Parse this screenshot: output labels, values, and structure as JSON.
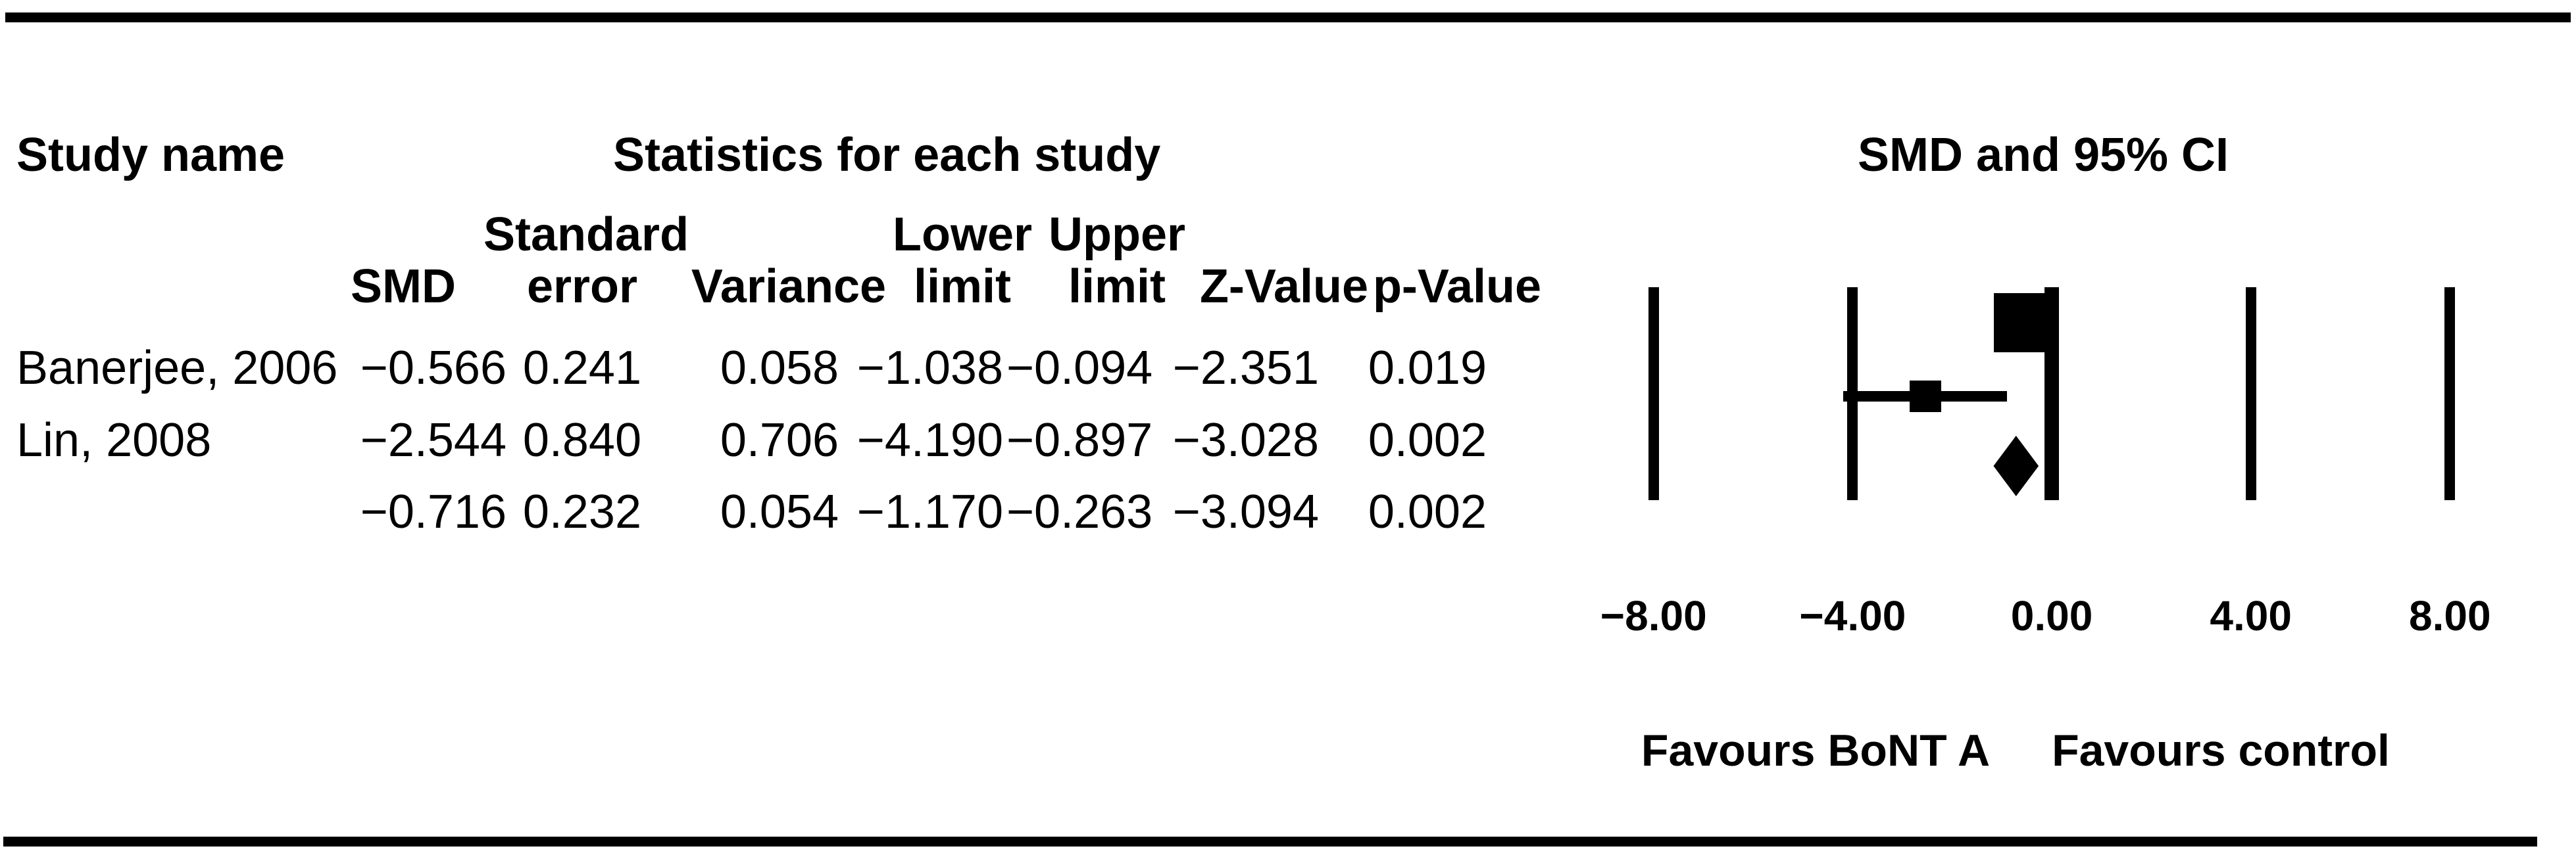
{
  "figure": {
    "headers": {
      "study_name": "Study name",
      "stats": "Statistics for each study",
      "plot": "SMD and 95% CI"
    },
    "columns": [
      {
        "line1": "",
        "line2": "SMD"
      },
      {
        "line1": "Standard",
        "line2": "error"
      },
      {
        "line1": "",
        "line2": "Variance"
      },
      {
        "line1": "Lower",
        "line2": "limit"
      },
      {
        "line1": "Upper",
        "line2": "limit"
      },
      {
        "line1": "",
        "line2": "Z-Value"
      },
      {
        "line1": "",
        "line2": "p-Value"
      }
    ],
    "rows": [
      {
        "study": "Banerjee, 2006",
        "smd": "−0.566",
        "se": "0.241",
        "variance": "0.058",
        "lower": "−1.038",
        "upper": "−0.094",
        "z": "−2.351",
        "p": "0.019"
      },
      {
        "study": "Lin, 2008",
        "smd": "−2.544",
        "se": "0.840",
        "variance": "0.706",
        "lower": "−4.190",
        "upper": "−0.897",
        "z": "−3.028",
        "p": "0.002"
      },
      {
        "study": "",
        "smd": "−0.716",
        "se": "0.232",
        "variance": "0.054",
        "lower": "−1.170",
        "upper": "−0.263",
        "z": "−3.094",
        "p": "0.002"
      }
    ],
    "footer": {
      "favours_left": "Favours BoNT A",
      "favours_right": "Favours control"
    }
  },
  "chart_data": {
    "type": "forest",
    "title": "SMD and 95% CI",
    "effect_measure": "SMD",
    "x_axis": {
      "min": -8,
      "max": 8,
      "ticks": [
        -8,
        -4,
        0,
        4,
        8
      ],
      "tick_labels": [
        "−8.00",
        "−4.00",
        "0.00",
        "4.00",
        "8.00"
      ],
      "zero_line_emphasized": true
    },
    "studies": [
      {
        "name": "Banerjee, 2006",
        "smd": -0.566,
        "standard_error": 0.241,
        "variance": 0.058,
        "ci_lower": -1.038,
        "ci_upper": -0.094,
        "z_value": -2.351,
        "p_value": 0.019,
        "marker_px": 90
      },
      {
        "name": "Lin, 2008",
        "smd": -2.544,
        "standard_error": 0.84,
        "variance": 0.706,
        "ci_lower": -4.19,
        "ci_upper": -0.897,
        "z_value": -3.028,
        "p_value": 0.002,
        "marker_px": 48
      }
    ],
    "overall": {
      "smd": -0.716,
      "standard_error": 0.232,
      "variance": 0.054,
      "ci_lower": -1.17,
      "ci_upper": -0.263,
      "z_value": -3.094,
      "p_value": 0.002,
      "marker": "diamond"
    },
    "footer_labels": [
      "Favours BoNT A",
      "Favours control"
    ],
    "legend": "none",
    "grid": "vertical-ticks-only"
  }
}
